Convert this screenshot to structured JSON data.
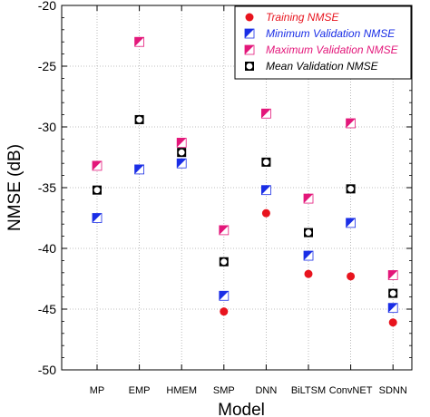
{
  "chart_data": {
    "type": "scatter",
    "xlabel": "Model",
    "ylabel": "NMSE (dB)",
    "ylim": [
      -50,
      -20
    ],
    "yticks": [
      -50,
      -45,
      -40,
      -35,
      -30,
      -25,
      -20
    ],
    "categories": [
      "MP",
      "EMP",
      "HMEM",
      "SMP",
      "DNN",
      "BiLTSM",
      "ConvNET",
      "SDNN"
    ],
    "grid": true,
    "legend_position": "top-right",
    "series": [
      {
        "name": "Training NMSE",
        "marker": "filled-circle",
        "color": "#e8141e",
        "values": [
          null,
          null,
          null,
          -45.2,
          -37.1,
          -42.1,
          -42.3,
          -46.1
        ]
      },
      {
        "name": "Minimum Validation NMSE",
        "marker": "half-square",
        "color": "#1a2ee6",
        "values": [
          -37.5,
          -33.5,
          -33.0,
          -43.9,
          -35.2,
          -40.6,
          -37.9,
          -44.9
        ]
      },
      {
        "name": "Maximum Validation NMSE",
        "marker": "half-square",
        "color": "#e3177a",
        "values": [
          -33.2,
          -23.0,
          -31.3,
          -38.5,
          -28.9,
          -35.9,
          -29.7,
          -42.2
        ]
      },
      {
        "name": "Mean Validation NMSE",
        "marker": "open-square-circle",
        "color": "#000000",
        "values": [
          -35.2,
          -29.4,
          -32.1,
          -41.1,
          -32.9,
          -38.7,
          -35.1,
          -43.7
        ]
      }
    ]
  }
}
